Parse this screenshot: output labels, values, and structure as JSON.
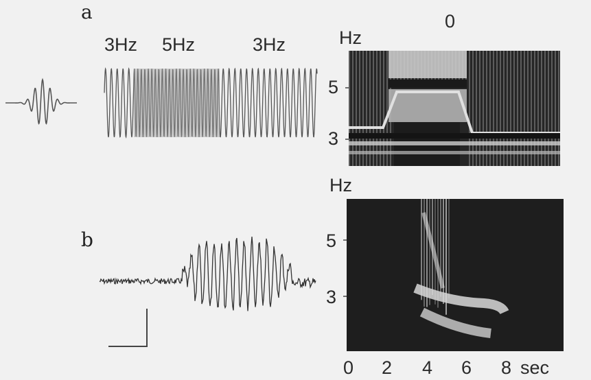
{
  "panel_a": {
    "letter": "a",
    "freq_labels": [
      "3Hz",
      "5Hz",
      "3Hz"
    ],
    "signal_segments_hz": [
      3,
      5,
      3
    ],
    "spectrogram": {
      "unit": "Hz",
      "ticks": [
        "5",
        "3"
      ],
      "top_label": "0"
    }
  },
  "panel_b": {
    "letter": "b",
    "spectrogram": {
      "unit": "Hz",
      "ticks": [
        "5",
        "3"
      ]
    }
  },
  "time_axis": {
    "ticks": [
      "0",
      "2",
      "4",
      "6",
      "8"
    ],
    "unit": "sec"
  },
  "colors": {
    "background": "#f1f1f1",
    "trace": "#555555",
    "spectrogram_dark": "#1c1c1c",
    "spectrogram_light": "#d8d8d8"
  }
}
